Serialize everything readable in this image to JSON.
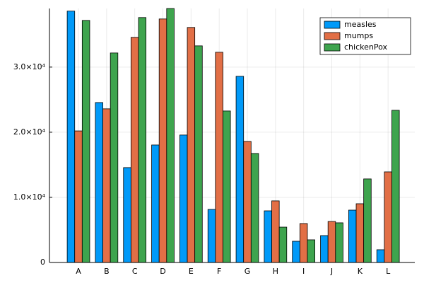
{
  "chart_data": {
    "type": "bar",
    "categories": [
      "A",
      "B",
      "C",
      "D",
      "E",
      "F",
      "G",
      "H",
      "I",
      "J",
      "K",
      "L"
    ],
    "series": [
      {
        "name": "measles",
        "color": "#009af9",
        "values": [
          38600,
          24560,
          14570,
          18040,
          19570,
          8150,
          28590,
          7930,
          3260,
          4130,
          8040,
          1960
        ]
      },
      {
        "name": "mumps",
        "color": "#e26f46",
        "values": [
          20200,
          23590,
          34570,
          37390,
          36090,
          32280,
          18590,
          9460,
          5980,
          6300,
          9020,
          13910
        ]
      },
      {
        "name": "chickenPox",
        "color": "#3ea44e",
        "values": [
          37170,
          32170,
          37610,
          39000,
          33260,
          23260,
          16740,
          5430,
          3480,
          6090,
          12830,
          23370
        ]
      }
    ],
    "ylim": [
      0,
      39000
    ],
    "yticks": [
      0,
      {
        "value": 10000,
        "label": "1.0×10⁴"
      },
      {
        "value": 20000,
        "label": "2.0×10⁴"
      },
      {
        "value": 30000,
        "label": "3.0×10⁴"
      }
    ],
    "grid": true,
    "legend": "top-right"
  }
}
